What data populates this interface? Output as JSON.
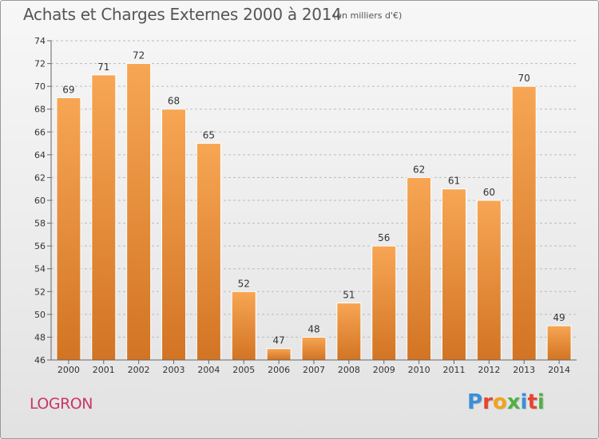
{
  "header": {
    "title": "Achats et Charges Externes 2000 à 2014",
    "subtitle": "(en milliers d'€)"
  },
  "footer": {
    "commune": "LOGRON",
    "logo_text": "Proxiti",
    "logo_colors": [
      "#3a8fd8",
      "#e8432e",
      "#f2a31b",
      "#52b043",
      "#3a8fd8",
      "#e8432e",
      "#52b043"
    ]
  },
  "colors": {
    "bar_top": "#f7a654",
    "bar_bottom": "#d27423",
    "grid": "#bbbbbb",
    "axis": "#666666",
    "commune": "#c8366a"
  },
  "chart_data": {
    "type": "bar",
    "categories": [
      "2000",
      "2001",
      "2002",
      "2003",
      "2004",
      "2005",
      "2006",
      "2007",
      "2008",
      "2009",
      "2010",
      "2011",
      "2012",
      "2013",
      "2014"
    ],
    "values": [
      69,
      71,
      72,
      68,
      65,
      52,
      47,
      48,
      51,
      56,
      62,
      61,
      60,
      70,
      49
    ],
    "ylim": [
      46,
      74
    ],
    "yticks": [
      46,
      48,
      50,
      52,
      54,
      56,
      58,
      60,
      62,
      64,
      66,
      68,
      70,
      72,
      74
    ],
    "grid": true,
    "data_labels": true
  }
}
